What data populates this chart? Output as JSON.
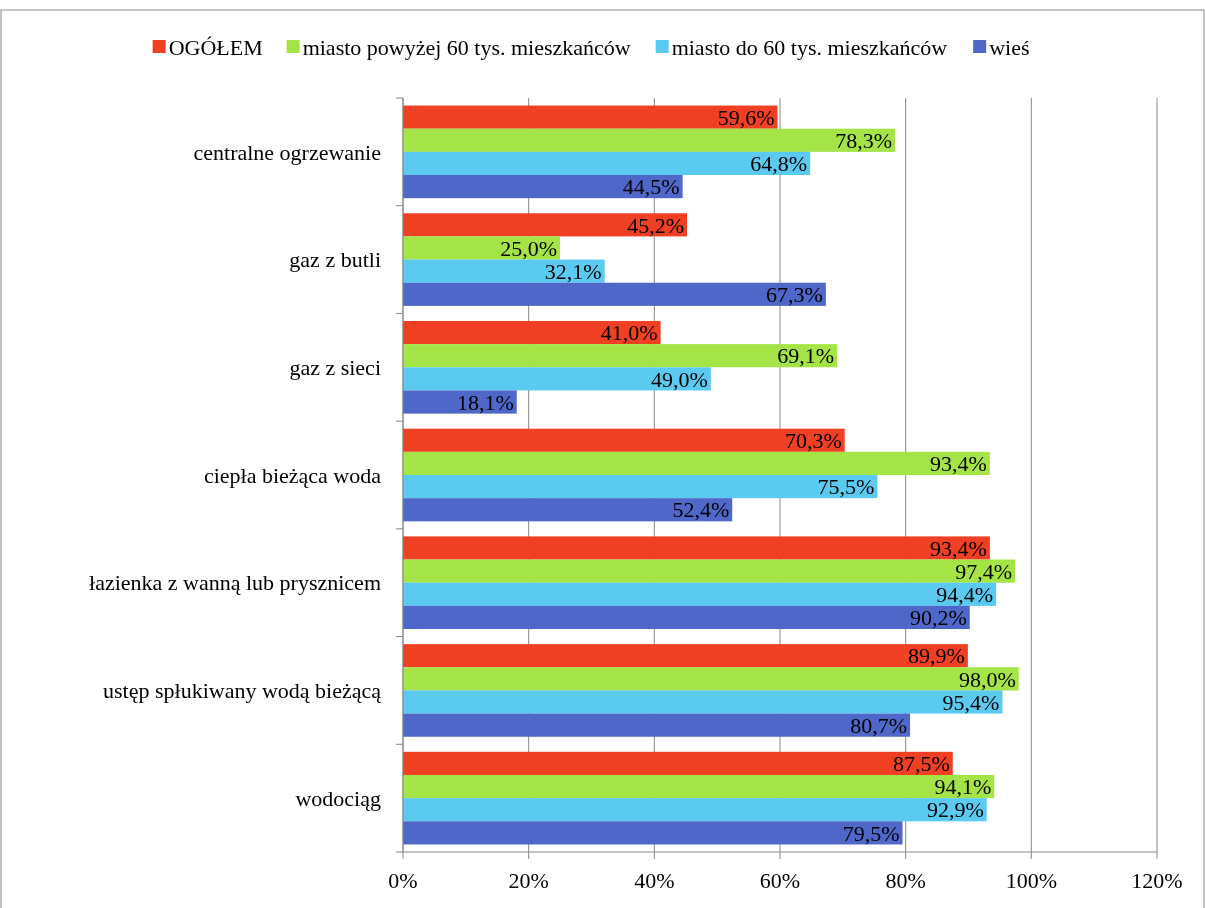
{
  "chart_data": {
    "type": "bar",
    "orientation": "horizontal",
    "categories": [
      "centralne ogrzewanie",
      "gaz z butli",
      "gaz z sieci",
      "ciepła bieżąca woda",
      "łazienka z wanną lub prysznicem",
      "ustęp spłukiwany wodą bieżącą",
      "wodociąg"
    ],
    "series": [
      {
        "name": "OGÓŁEM",
        "color": "#f04023",
        "values": [
          59.6,
          45.2,
          41.0,
          70.3,
          93.4,
          89.9,
          87.5
        ],
        "value_labels": [
          "59,6%",
          "45,2%",
          "41,0%",
          "70,3%",
          "93,4%",
          "89,9%",
          "87,5%"
        ]
      },
      {
        "name": "miasto powyżej 60 tys. mieszkańców",
        "color": "#a4e446",
        "values": [
          78.3,
          25.0,
          69.1,
          93.4,
          97.4,
          98.0,
          94.1
        ],
        "value_labels": [
          "78,3%",
          "25,0%",
          "69,1%",
          "93,4%",
          "97,4%",
          "98,0%",
          "94,1%"
        ]
      },
      {
        "name": "miasto do 60 tys. mieszkańców",
        "color": "#5bcaf0",
        "values": [
          64.8,
          32.1,
          49.0,
          75.5,
          94.4,
          95.4,
          92.9
        ],
        "value_labels": [
          "64,8%",
          "32,1%",
          "49,0%",
          "75,5%",
          "94,4%",
          "95,4%",
          "92,9%"
        ]
      },
      {
        "name": "wieś",
        "color": "#4f67c8",
        "values": [
          44.5,
          67.3,
          18.1,
          52.4,
          90.2,
          80.7,
          79.5
        ],
        "value_labels": [
          "44,5%",
          "67,3%",
          "18,1%",
          "52,4%",
          "90,2%",
          "80,7%",
          "79,5%"
        ]
      }
    ],
    "xlim": [
      0,
      120
    ],
    "xticks": [
      {
        "value": 0,
        "label": "0%"
      },
      {
        "value": 20,
        "label": "20%"
      },
      {
        "value": 40,
        "label": "40%"
      },
      {
        "value": 60,
        "label": "60%"
      },
      {
        "value": 80,
        "label": "80%"
      },
      {
        "value": 100,
        "label": "100%"
      },
      {
        "value": 120,
        "label": "120%"
      }
    ],
    "grid": "x",
    "legend": "top"
  }
}
